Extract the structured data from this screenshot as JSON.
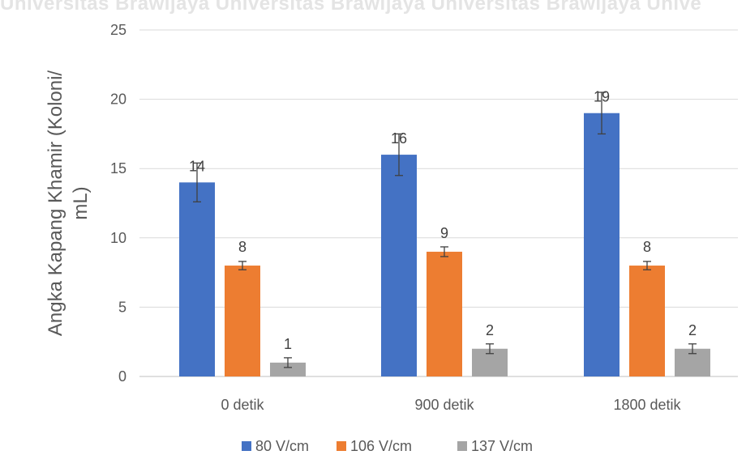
{
  "watermark": "Universitas Brawijaya Universitas Brawijaya Universitas Brawijaya Unive",
  "chart_data": {
    "type": "bar",
    "title": "",
    "xlabel": "",
    "ylabel": "Angka Kapang Khamir (Koloni/ mL)",
    "ylabel_lines": [
      "Angka Kapang Khamir (Koloni/",
      "mL)"
    ],
    "categories": [
      "0 detik",
      "900 detik",
      "1800 detik"
    ],
    "ylim": [
      0,
      25
    ],
    "yticks": [
      0,
      5,
      10,
      15,
      20,
      25
    ],
    "grid": true,
    "legend_position": "bottom",
    "series": [
      {
        "name": "80 V/cm",
        "color": "#4472c4",
        "values": [
          14,
          16,
          19
        ],
        "errors": [
          1.4,
          1.5,
          1.5
        ]
      },
      {
        "name": "106 V/cm",
        "color": "#ed7d31",
        "values": [
          8,
          9,
          8
        ],
        "errors": [
          0.3,
          0.35,
          0.3
        ]
      },
      {
        "name": "137 V/cm",
        "color": "#a5a5a5",
        "values": [
          1,
          2,
          2
        ],
        "errors": [
          0.35,
          0.35,
          0.35
        ]
      }
    ]
  }
}
